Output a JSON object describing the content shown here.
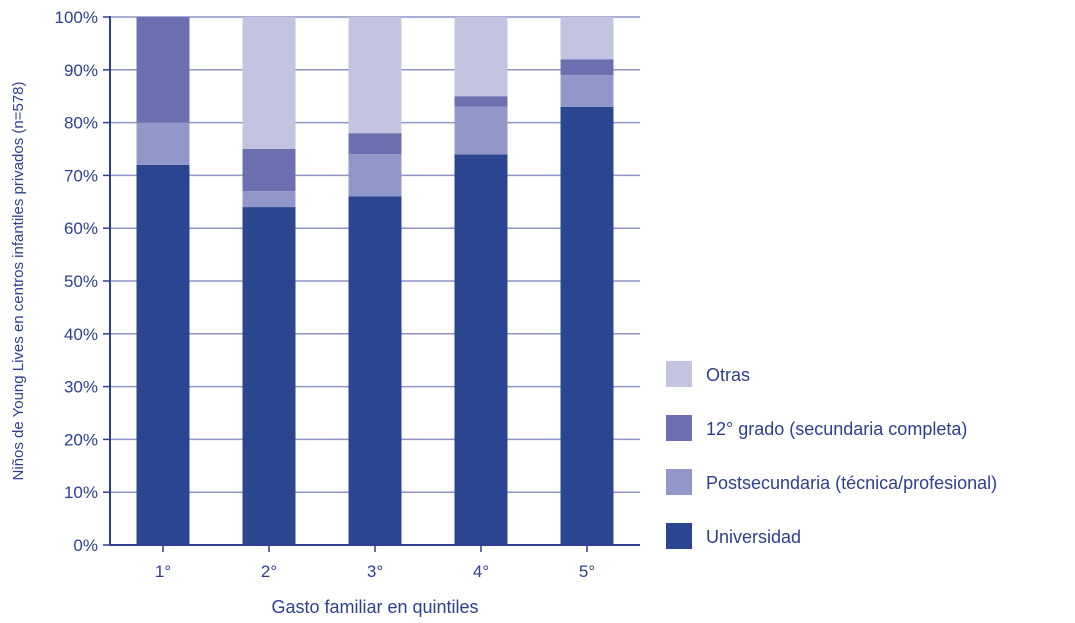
{
  "chart_data": {
    "type": "bar",
    "stacked": true,
    "title": "",
    "xlabel": "Gasto familiar en quintiles",
    "ylabel": "Niños de Young Lives en centros infantiles privados (n=578)",
    "categories": [
      "1°",
      "2°",
      "3°",
      "4°",
      "5°"
    ],
    "y_ticks": [
      "0%",
      "10%",
      "20%",
      "30%",
      "40%",
      "50%",
      "60%",
      "70%",
      "80%",
      "90%",
      "100%"
    ],
    "ylim": [
      0,
      100
    ],
    "grid": true,
    "legend_position": "right",
    "series": [
      {
        "name": "Universidad",
        "color": "#2b4590",
        "values": [
          72,
          64,
          66,
          74,
          83
        ]
      },
      {
        "name": "Postsecundaria (técnica/profesional)",
        "color": "#9198c9",
        "values": [
          8,
          3,
          8,
          9,
          6
        ]
      },
      {
        "name": "12° grado (secundaria completa)",
        "color": "#6c70b0",
        "values": [
          20,
          8,
          4,
          2,
          3
        ]
      },
      {
        "name": "Otras",
        "color": "#c3c4e0",
        "values": [
          0,
          25,
          22,
          15,
          8
        ]
      }
    ],
    "legend_order": [
      "Otras",
      "12° grado (secundaria completa)",
      "Postsecundaria (técnica/profesional)",
      "Universidad"
    ],
    "grid_color": "#8f93c6",
    "axis_color": "#2e3f8f"
  }
}
